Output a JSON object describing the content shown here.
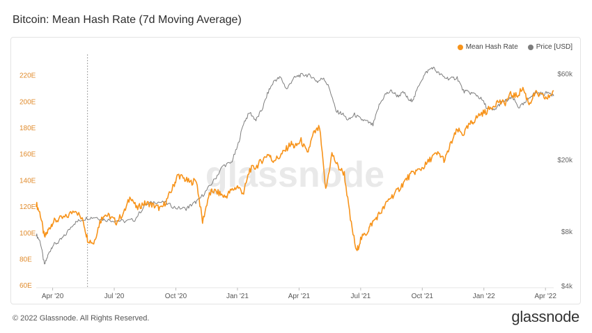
{
  "page": {
    "title": "Bitcoin: Mean Hash Rate (7d Moving Average)",
    "copyright": "© 2022 Glassnode. All Rights Reserved.",
    "brand": "glassnode",
    "watermark": "glassnode"
  },
  "colors": {
    "hash": "#f7931a",
    "price": "#7d7d7d",
    "axis_left": "#e08a2a",
    "axis_right": "#666666"
  },
  "chart_data": {
    "type": "line",
    "title": "Bitcoin: Mean Hash Rate (7d Moving Average)",
    "legend": [
      {
        "name": "Mean Hash Rate",
        "color": "#f7931a"
      },
      {
        "name": "Price [USD]",
        "color": "#7d7d7d"
      }
    ],
    "legend_position": "top-right",
    "x_ticks": [
      {
        "label": "Apr '20",
        "t": 0.5
      },
      {
        "label": "Jul '20",
        "t": 3.5
      },
      {
        "label": "Oct '20",
        "t": 6.5
      },
      {
        "label": "Jan '21",
        "t": 9.5
      },
      {
        "label": "Apr '21",
        "t": 12.5
      },
      {
        "label": "Jul '21",
        "t": 15.5
      },
      {
        "label": "Oct '21",
        "t": 18.5
      },
      {
        "label": "Jan '22",
        "t": 21.5
      },
      {
        "label": "Apr '22",
        "t": 24.5
      }
    ],
    "x_range": [
      -0.3,
      24.9
    ],
    "x_unit": "months since Mar 2020",
    "left_axis": {
      "label": "Mean Hash Rate",
      "range": [
        58,
        232
      ],
      "ticks": [
        60,
        80,
        100,
        120,
        140,
        160,
        180,
        200,
        220
      ],
      "tick_labels": [
        "60E",
        "80E",
        "100E",
        "120E",
        "140E",
        "160E",
        "180E",
        "200E",
        "220E"
      ]
    },
    "right_axis": {
      "label": "Price [USD]",
      "scale": "log",
      "range": [
        3900,
        72000
      ],
      "ticks": [
        4000,
        8000,
        20000,
        60000
      ],
      "tick_labels": [
        "$4k",
        "$8k",
        "$20k",
        "$60k"
      ]
    },
    "vertical_marker": {
      "t": 2.2,
      "style": "dashed"
    },
    "series": [
      {
        "name": "Mean Hash Rate",
        "axis": "left",
        "x": [
          -0.3,
          -0.1,
          0.1,
          0.3,
          0.5,
          0.8,
          1.2,
          1.6,
          2.0,
          2.2,
          2.5,
          2.8,
          3.0,
          3.3,
          3.6,
          4.0,
          4.3,
          4.6,
          4.9,
          5.2,
          5.5,
          5.8,
          6.1,
          6.4,
          6.6,
          6.9,
          7.2,
          7.5,
          7.8,
          8.1,
          8.3,
          8.6,
          8.9,
          9.2,
          9.5,
          9.8,
          10.1,
          10.4,
          10.7,
          11.0,
          11.2,
          11.5,
          11.8,
          12.1,
          12.3,
          12.6,
          12.9,
          13.2,
          13.5,
          13.8,
          14.1,
          14.4,
          14.7,
          15.0,
          15.3,
          15.5,
          15.8,
          16.0,
          16.3,
          16.6,
          16.9,
          17.2,
          17.5,
          17.8,
          18.1,
          18.4,
          18.7,
          19.0,
          19.3,
          19.6,
          19.9,
          20.2,
          20.5,
          20.8,
          21.0,
          21.3,
          21.6,
          21.9,
          22.2,
          22.5,
          22.8,
          23.1,
          23.4,
          23.7,
          24.0,
          24.3,
          24.6,
          24.9
        ],
        "values": [
          122,
          114,
          96,
          102,
          108,
          110,
          112,
          118,
          108,
          95,
          92,
          108,
          114,
          112,
          108,
          116,
          128,
          118,
          122,
          122,
          120,
          118,
          126,
          136,
          144,
          141,
          138,
          140,
          108,
          128,
          132,
          130,
          127,
          132,
          135,
          130,
          148,
          150,
          155,
          160,
          155,
          157,
          162,
          168,
          165,
          170,
          160,
          175,
          180,
          132,
          160,
          150,
          145,
          110,
          85,
          95,
          100,
          106,
          112,
          118,
          126,
          130,
          136,
          142,
          146,
          148,
          152,
          158,
          160,
          155,
          168,
          178,
          175,
          182,
          185,
          190,
          192,
          196,
          200,
          198,
          205,
          204,
          210,
          198,
          206,
          204,
          202,
          208
        ]
      },
      {
        "name": "Price [USD]",
        "axis": "right",
        "x": [
          -0.3,
          -0.1,
          0.1,
          0.3,
          0.5,
          0.8,
          1.1,
          1.5,
          1.8,
          2.2,
          2.6,
          3.0,
          3.5,
          4.0,
          4.5,
          5.0,
          5.5,
          6.0,
          6.5,
          7.0,
          7.3,
          7.6,
          8.0,
          8.4,
          8.8,
          9.2,
          9.5,
          9.8,
          10.1,
          10.4,
          10.7,
          11.0,
          11.3,
          11.6,
          11.9,
          12.2,
          12.5,
          12.8,
          13.1,
          13.4,
          13.7,
          14.0,
          14.3,
          14.6,
          14.9,
          15.2,
          15.5,
          15.8,
          16.1,
          16.4,
          16.7,
          17.0,
          17.3,
          17.6,
          17.9,
          18.1,
          18.4,
          18.7,
          19.0,
          19.3,
          19.6,
          19.9,
          20.2,
          20.5,
          20.8,
          21.1,
          21.4,
          21.7,
          22.0,
          22.3,
          22.6,
          22.9,
          23.2,
          23.5,
          23.8,
          24.1,
          24.4,
          24.7,
          24.9
        ],
        "values": [
          7700,
          7000,
          5200,
          6000,
          6700,
          7000,
          7600,
          8800,
          9200,
          9500,
          9600,
          9300,
          9200,
          9100,
          9300,
          11200,
          11700,
          11500,
          10800,
          10700,
          11300,
          11900,
          13500,
          15600,
          18500,
          19200,
          23500,
          32000,
          36500,
          33000,
          38000,
          47500,
          55000,
          57000,
          49000,
          56000,
          58500,
          59000,
          58000,
          54000,
          57000,
          49000,
          37000,
          36000,
          33000,
          35500,
          33500,
          32500,
          31000,
          40000,
          46000,
          48000,
          45000,
          47000,
          42000,
          44000,
          54000,
          61000,
          65000,
          60000,
          57000,
          56000,
          57000,
          48000,
          47000,
          46000,
          43000,
          38000,
          37500,
          41000,
          42500,
          44000,
          39000,
          41000,
          45500,
          47000,
          46000,
          47500,
          45000
        ]
      }
    ]
  }
}
